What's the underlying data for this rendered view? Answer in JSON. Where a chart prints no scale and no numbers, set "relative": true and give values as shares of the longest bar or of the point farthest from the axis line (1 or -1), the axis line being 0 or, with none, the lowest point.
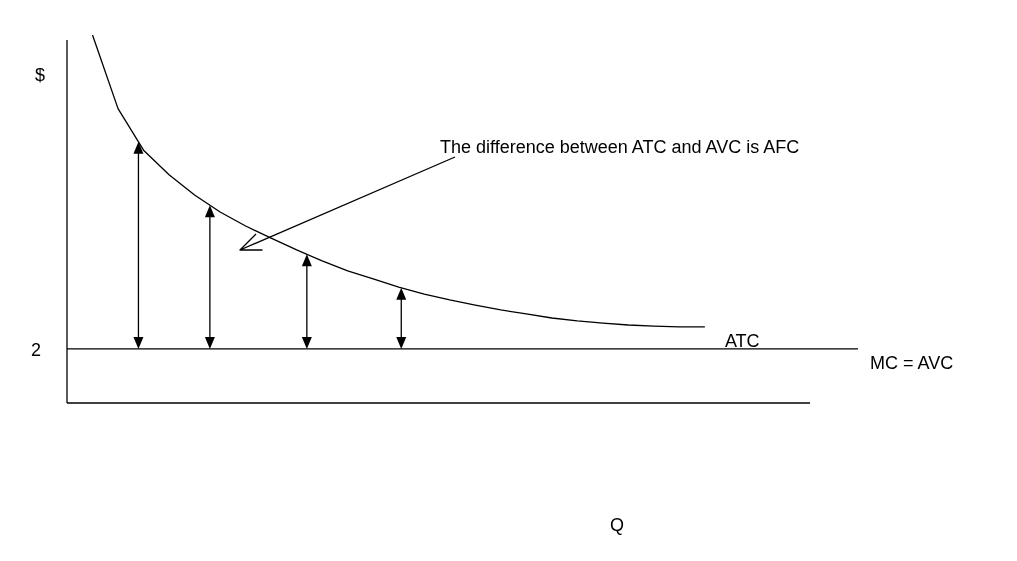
{
  "chart_data": {
    "type": "line",
    "relative": true,
    "ylabel": "$",
    "legend": false,
    "categories": [
      null,
      null,
      null,
      null,
      null,
      null,
      null,
      null,
      null,
      null,
      null,
      null,
      null,
      null,
      null,
      null,
      null,
      null,
      null,
      null,
      null,
      null,
      null,
      null,
      null,
      null,
      null,
      null,
      null,
      null,
      null,
      null
    ],
    "series": [
      {
        "name": "ATC",
        "color": "#000000",
        "values": [
          null,
          1.0,
          0.8,
          0.687,
          0.62,
          0.565,
          0.519,
          0.481,
          0.448,
          0.416,
          0.386,
          0.359,
          0.337,
          0.315,
          0.296,
          0.28,
          0.266,
          0.253,
          0.242,
          0.231,
          0.223,
          0.217,
          0.212,
          0.209,
          0.207,
          0.207,
          null,
          null,
          null,
          null,
          null,
          null
        ]
      },
      {
        "name": "MC = AVC",
        "color": "#000000",
        "values": [
          0.147,
          0.147,
          0.147,
          0.147,
          0.147,
          0.147,
          0.147,
          0.147,
          0.147,
          0.147,
          0.147,
          0.147,
          0.147,
          0.147,
          0.147,
          0.147,
          0.147,
          0.147,
          0.147,
          0.147,
          0.147,
          0.147,
          0.147,
          0.147,
          0.147,
          0.147,
          0.147,
          0.147,
          0.147,
          0.147,
          0.147,
          0.147
        ]
      }
    ],
    "annotations": [
      "The difference between ATC and AVC is AFC",
      "2",
      "Q"
    ]
  }
}
